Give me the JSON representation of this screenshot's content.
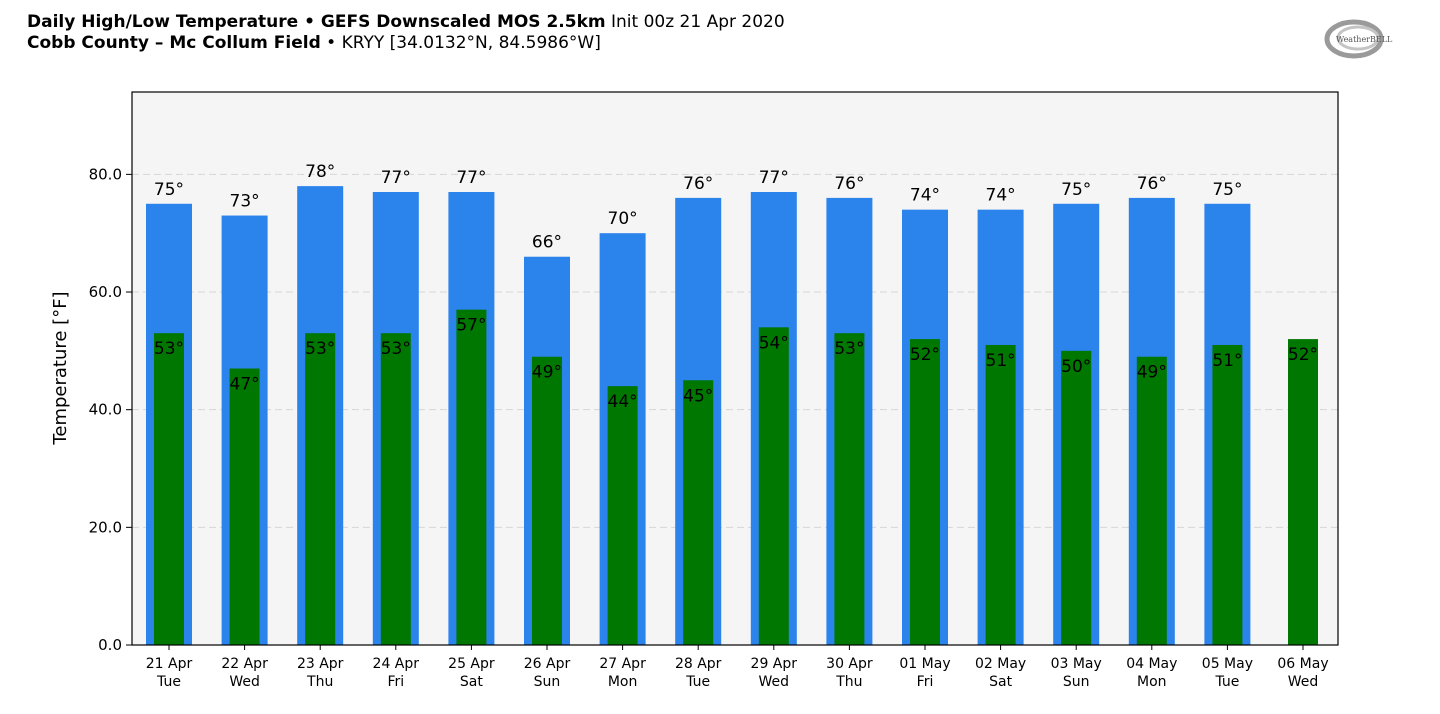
{
  "header": {
    "line1_bold": "Daily High/Low Temperature • GEFS Downscaled MOS 2.5km",
    "line1_regular": " Init 00z 21 Apr 2020",
    "line2_bold": "Cobb County – Mc Collum Field",
    "line2_regular": " • KRYY [34.0132°N, 84.5986°W]"
  },
  "logo": {
    "text": "WeatherBELL"
  },
  "colors": {
    "high": "#2b83ec",
    "low": "#007700",
    "plot_bg": "#f5f5f5",
    "grid": "#d6d6d6"
  },
  "chart_data": {
    "type": "bar",
    "title": "Daily High/Low Temperature • GEFS Downscaled MOS 2.5km",
    "ylabel": "Temperature [°F]",
    "xlabel": "",
    "ylim": [
      0,
      94
    ],
    "yticks": [
      "0.0",
      "20.0",
      "40.0",
      "60.0",
      "80.0"
    ],
    "ytick_values": [
      0,
      20,
      40,
      60,
      80
    ],
    "grid": true,
    "categories": [
      "21 Apr",
      "22 Apr",
      "23 Apr",
      "24 Apr",
      "25 Apr",
      "26 Apr",
      "27 Apr",
      "28 Apr",
      "29 Apr",
      "30 Apr",
      "01 May",
      "02 May",
      "03 May",
      "04 May",
      "05 May",
      "06 May"
    ],
    "weekdays": [
      "Tue",
      "Wed",
      "Thu",
      "Fri",
      "Sat",
      "Sun",
      "Mon",
      "Tue",
      "Wed",
      "Thu",
      "Fri",
      "Sat",
      "Sun",
      "Mon",
      "Tue",
      "Wed"
    ],
    "series": [
      {
        "values": [
          75,
          73,
          78,
          77,
          77,
          66,
          70,
          76,
          77,
          76,
          74,
          74,
          75,
          76,
          75,
          null
        ],
        "labels": [
          "75°",
          "73°",
          "78°",
          "77°",
          "77°",
          "66°",
          "70°",
          "76°",
          "77°",
          "76°",
          "74°",
          "74°",
          "75°",
          "76°",
          "75°",
          ""
        ]
      },
      {
        "values": [
          53,
          47,
          53,
          53,
          57,
          49,
          44,
          45,
          54,
          53,
          52,
          51,
          50,
          49,
          51,
          52
        ],
        "labels": [
          "53°",
          "47°",
          "53°",
          "53°",
          "57°",
          "49°",
          "44°",
          "45°",
          "54°",
          "53°",
          "52°",
          "51°",
          "50°",
          "49°",
          "51°",
          "52°"
        ]
      }
    ]
  }
}
